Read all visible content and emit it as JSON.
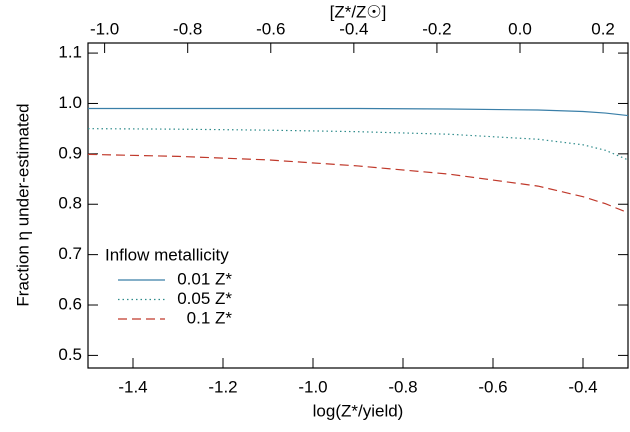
{
  "chart_data": {
    "type": "line",
    "xlabel": "log(Z*/yield)",
    "x2label": "[Z*/Z☉]",
    "ylabel": "Fraction η under-estimated",
    "xlim": [
      -1.5,
      -0.3
    ],
    "xticks": [
      -1.4,
      -1.2,
      {
        "value": -1,
        "label": "-1.0"
      },
      -0.8,
      -0.6,
      -0.4
    ],
    "x2lim": [
      -1.04,
      0.26
    ],
    "x2ticks": [
      {
        "value": -1,
        "label": "-1.0"
      },
      -0.8,
      -0.6,
      -0.4,
      -0.2,
      {
        "value": 0,
        "label": "0.0"
      },
      0.2
    ],
    "ylim": [
      0.475,
      1.12
    ],
    "yticks": [
      0.5,
      0.6,
      0.7,
      0.8,
      0.9,
      {
        "value": 1,
        "label": "1.0"
      },
      1.1
    ],
    "legend_title": "Inflow metallicity",
    "x": [
      -1.5,
      -1.3,
      -1.1,
      -0.9,
      -0.7,
      -0.5,
      -0.4,
      -0.35,
      -0.3
    ],
    "series": [
      {
        "name": "0.01 Z*",
        "color": "#3a7fa8",
        "style": "solid",
        "values": [
          0.99,
          0.99,
          0.99,
          0.99,
          0.989,
          0.987,
          0.984,
          0.981,
          0.976
        ]
      },
      {
        "name": "0.05 Z*",
        "color": "#2e8b8b",
        "style": "dotted",
        "values": [
          0.95,
          0.949,
          0.947,
          0.944,
          0.939,
          0.929,
          0.918,
          0.907,
          0.888
        ]
      },
      {
        "name": "0.1 Z*",
        "color": "#c0392b",
        "style": "dashed",
        "values": [
          0.899,
          0.895,
          0.888,
          0.876,
          0.86,
          0.836,
          0.815,
          0.801,
          0.783
        ]
      }
    ]
  }
}
